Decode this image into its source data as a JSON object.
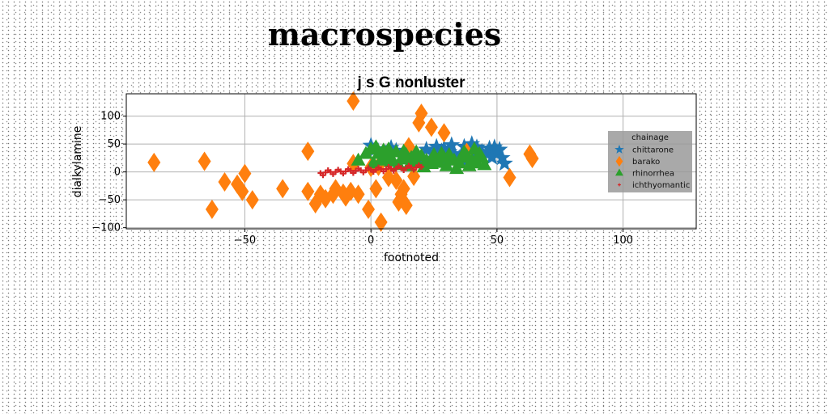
{
  "page": {
    "title": "macrospecies"
  },
  "chart_data": {
    "type": "scatter",
    "title": "j s G nonluster",
    "xlabel": "footnoted",
    "ylabel": "dialkylamine",
    "xlim": [
      -97,
      129
    ],
    "ylim": [
      -102,
      140
    ],
    "xticks": [
      -50,
      0,
      50,
      100
    ],
    "yticks": [
      -100,
      -50,
      0,
      50,
      100
    ],
    "grid": true,
    "legend": {
      "title": "chainage",
      "placement": "right"
    },
    "series": [
      {
        "name": "chittarone",
        "color": "#1f77b4",
        "marker": "star",
        "points": [
          [
            0,
            47
          ],
          [
            2,
            41
          ],
          [
            5,
            36
          ],
          [
            8,
            43
          ],
          [
            10,
            38
          ],
          [
            14,
            33
          ],
          [
            18,
            30
          ],
          [
            22,
            40
          ],
          [
            25,
            35
          ],
          [
            26,
            45
          ],
          [
            27,
            28
          ],
          [
            29,
            42
          ],
          [
            31,
            36
          ],
          [
            33,
            30
          ],
          [
            35,
            25
          ],
          [
            37,
            45
          ],
          [
            39,
            38
          ],
          [
            41,
            30
          ],
          [
            42,
            44
          ],
          [
            44,
            36
          ],
          [
            46,
            32
          ],
          [
            47,
            42
          ],
          [
            49,
            44
          ],
          [
            50,
            36
          ],
          [
            52,
            25
          ],
          [
            53,
            15
          ],
          [
            38,
            20
          ],
          [
            30,
            20
          ],
          [
            24,
            24
          ],
          [
            20,
            20
          ],
          [
            16,
            25
          ],
          [
            12,
            28
          ],
          [
            7,
            30
          ],
          [
            44,
            25
          ],
          [
            36,
            32
          ],
          [
            28,
            37
          ],
          [
            48,
            26
          ],
          [
            51,
            40
          ],
          [
            32,
            48
          ],
          [
            40,
            50
          ]
        ]
      },
      {
        "name": "barako",
        "color": "#ff7f0e",
        "marker": "diamond",
        "points": [
          [
            -86,
            17
          ],
          [
            -66,
            19
          ],
          [
            -63,
            -67
          ],
          [
            -58,
            -18
          ],
          [
            -53,
            -22
          ],
          [
            -51,
            -35
          ],
          [
            -50,
            -3
          ],
          [
            -47,
            -50
          ],
          [
            -35,
            -30
          ],
          [
            -25,
            -35
          ],
          [
            -25,
            37
          ],
          [
            -22,
            -57
          ],
          [
            -18,
            -48
          ],
          [
            -15,
            -40
          ],
          [
            -14,
            -30
          ],
          [
            -11,
            -38
          ],
          [
            -8,
            -35
          ],
          [
            -7,
            15
          ],
          [
            -7,
            127
          ],
          [
            -5,
            -40
          ],
          [
            -1,
            -67
          ],
          [
            0,
            8
          ],
          [
            3,
            10
          ],
          [
            4,
            -90
          ],
          [
            7,
            -10
          ],
          [
            10,
            -15
          ],
          [
            11,
            -54
          ],
          [
            12,
            -40
          ],
          [
            13,
            -30
          ],
          [
            14,
            -60
          ],
          [
            15,
            45
          ],
          [
            17,
            -8
          ],
          [
            18,
            28
          ],
          [
            19,
            88
          ],
          [
            20,
            105
          ],
          [
            24,
            80
          ],
          [
            29,
            70
          ],
          [
            38,
            35
          ],
          [
            55,
            -10
          ],
          [
            63,
            32
          ],
          [
            64,
            24
          ],
          [
            -10,
            -45
          ],
          [
            -20,
            -40
          ],
          [
            2,
            -30
          ]
        ]
      },
      {
        "name": "rhinorrhea",
        "color": "#2ca02c",
        "marker": "triangle",
        "points": [
          [
            -2,
            32
          ],
          [
            0,
            40
          ],
          [
            2,
            44
          ],
          [
            3,
            32
          ],
          [
            5,
            38
          ],
          [
            6,
            28
          ],
          [
            7,
            40
          ],
          [
            8,
            25
          ],
          [
            10,
            35
          ],
          [
            12,
            22
          ],
          [
            13,
            36
          ],
          [
            14,
            30
          ],
          [
            16,
            25
          ],
          [
            18,
            18
          ],
          [
            20,
            28
          ],
          [
            22,
            20
          ],
          [
            24,
            14
          ],
          [
            25,
            22
          ],
          [
            27,
            16
          ],
          [
            29,
            25
          ],
          [
            30,
            10
          ],
          [
            31,
            30
          ],
          [
            33,
            20
          ],
          [
            35,
            15
          ],
          [
            36,
            25
          ],
          [
            37,
            35
          ],
          [
            39,
            10
          ],
          [
            40,
            20
          ],
          [
            41,
            40
          ],
          [
            42,
            15
          ],
          [
            44,
            25
          ],
          [
            45,
            12
          ],
          [
            8,
            18
          ],
          [
            18,
            35
          ],
          [
            28,
            32
          ],
          [
            34,
            5
          ],
          [
            4,
            20
          ],
          [
            15,
            10
          ],
          [
            25,
            30
          ],
          [
            38,
            28
          ],
          [
            43,
            32
          ],
          [
            -5,
            20
          ],
          [
            1,
            15
          ],
          [
            11,
            12
          ],
          [
            21,
            8
          ]
        ]
      },
      {
        "name": "ichthyomantic",
        "color": "#d62728",
        "marker": "plus",
        "points": [
          [
            -20,
            -2
          ],
          [
            -18,
            -1
          ],
          [
            -16,
            0
          ],
          [
            -14,
            0
          ],
          [
            -12,
            1
          ],
          [
            -10,
            1
          ],
          [
            -8,
            2
          ],
          [
            -6,
            2
          ],
          [
            -4,
            3
          ],
          [
            -2,
            3
          ],
          [
            0,
            4
          ],
          [
            2,
            4
          ],
          [
            4,
            5
          ],
          [
            6,
            5
          ],
          [
            8,
            6
          ],
          [
            10,
            6
          ],
          [
            12,
            7
          ],
          [
            14,
            7
          ],
          [
            16,
            8
          ],
          [
            18,
            8
          ],
          [
            20,
            9
          ],
          [
            -19,
            -6
          ],
          [
            -15,
            -4
          ],
          [
            -11,
            -3
          ],
          [
            -7,
            -2
          ],
          [
            -3,
            -1
          ],
          [
            1,
            0
          ],
          [
            5,
            1
          ],
          [
            9,
            2
          ],
          [
            13,
            3
          ],
          [
            17,
            4
          ],
          [
            -17,
            3
          ],
          [
            -13,
            4
          ],
          [
            -9,
            5
          ],
          [
            -5,
            6
          ],
          [
            -1,
            7
          ],
          [
            3,
            8
          ],
          [
            7,
            9
          ],
          [
            11,
            10
          ],
          [
            15,
            11
          ],
          [
            19,
            12
          ]
        ]
      }
    ]
  }
}
